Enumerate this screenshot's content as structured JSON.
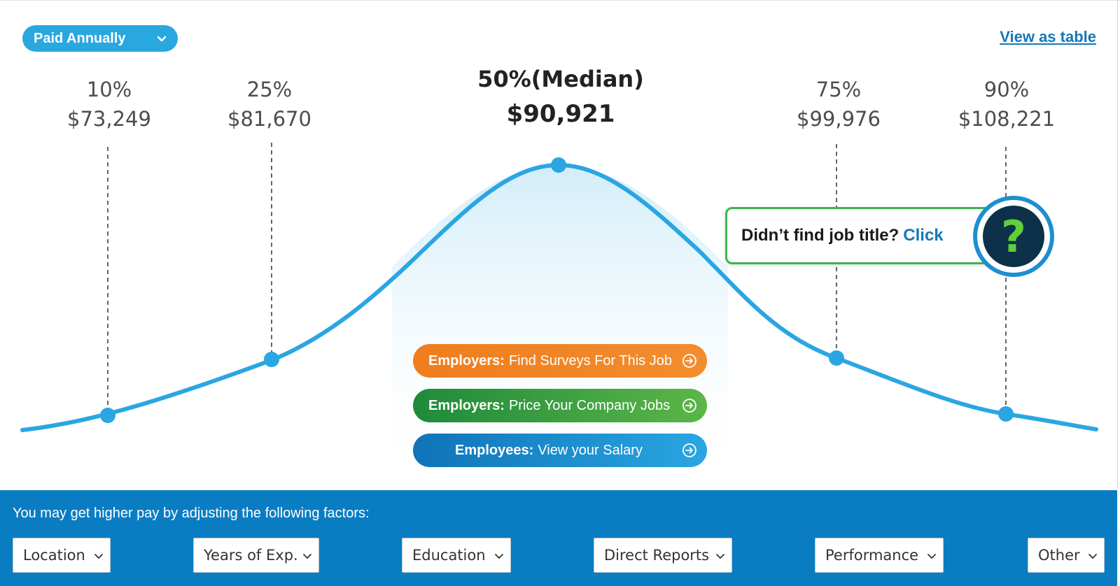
{
  "pay_period": {
    "label": "Paid Annually",
    "icon": "chevron-down-icon"
  },
  "view_table_link": "View as table",
  "percentiles": [
    {
      "percent": "10%",
      "amount": "$73,249"
    },
    {
      "percent": "25%",
      "amount": "$81,670"
    },
    {
      "percent": "50%(Median)",
      "amount": "$90,921"
    },
    {
      "percent": "75%",
      "amount": "$99,976"
    },
    {
      "percent": "90%",
      "amount": "$108,221"
    }
  ],
  "ctas": [
    {
      "bold": "Employers:",
      "text": "Find Surveys For This Job",
      "icon": "arrow-circle-right-icon"
    },
    {
      "bold": "Employers:",
      "text": "Price Your Company Jobs",
      "icon": "arrow-circle-right-icon"
    },
    {
      "bold": "Employees:",
      "text": "View your Salary",
      "icon": "arrow-circle-right-icon"
    }
  ],
  "job_title_prompt": {
    "text": "Didn’t find job title?",
    "link": "Click",
    "icon_glyph": "?"
  },
  "factors": {
    "title": "You may get higher pay by adjusting the following factors:",
    "items": [
      "Location",
      "Years of Exp.",
      "Education",
      "Direct Reports",
      "Performance",
      "Other"
    ]
  },
  "colors": {
    "accent_blue": "#29a8e0",
    "curve_blue": "#2aa6e2",
    "link_blue": "#1478b8",
    "factors_bar": "#0a7dc2",
    "orange": "#ef7d1d",
    "green": "#1e8a3a",
    "help_green": "#5fcf3a",
    "help_dark": "#0d3148"
  }
}
